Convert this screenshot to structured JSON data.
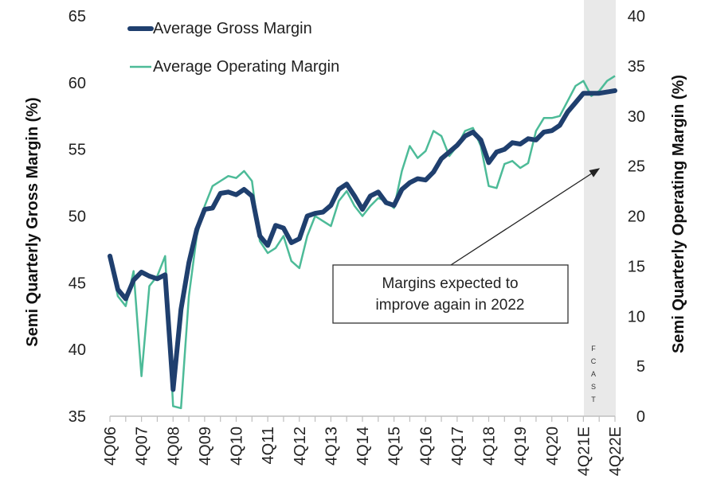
{
  "chart_data": {
    "type": "line",
    "xlabel": "",
    "ylabel": "Semi Quarterly Gross Margin (%)",
    "y2label": "Semi Quarterly Operating Margin (%)",
    "ylim": [
      35,
      65
    ],
    "y2lim": [
      0,
      40
    ],
    "yticks": [
      "35",
      "40",
      "45",
      "50",
      "55",
      "60",
      "65"
    ],
    "y2ticks": [
      "0",
      "5",
      "10",
      "15",
      "20",
      "25",
      "30",
      "35",
      "40"
    ],
    "xticklabels": [
      "4Q06",
      "4Q07",
      "4Q08",
      "4Q09",
      "4Q10",
      "4Q11",
      "4Q12",
      "4Q13",
      "4Q14",
      "4Q15",
      "4Q16",
      "4Q17",
      "4Q18",
      "4Q19",
      "4Q20",
      "4Q21E",
      "4Q22E"
    ],
    "legend": "top-left",
    "series": [
      {
        "name": "Average Gross Margin",
        "axis": "left",
        "color": "#1f3f6e",
        "values": [
          47.0,
          44.5,
          43.8,
          45.2,
          45.8,
          45.5,
          45.3,
          45.6,
          37.0,
          43.0,
          46.5,
          49.0,
          50.5,
          50.6,
          51.7,
          51.8,
          51.6,
          52.0,
          51.5,
          48.5,
          47.8,
          49.3,
          49.1,
          48.0,
          48.3,
          50.0,
          50.2,
          50.3,
          50.8,
          52.0,
          52.4,
          51.5,
          50.5,
          51.5,
          51.8,
          51.0,
          50.8,
          52.0,
          52.5,
          52.8,
          52.7,
          53.3,
          54.3,
          54.8,
          55.3,
          56.0,
          56.3,
          55.7,
          54.0,
          54.8,
          55.0,
          55.5,
          55.4,
          55.8,
          55.7,
          56.3,
          56.4,
          56.8,
          57.8,
          58.5,
          59.2,
          59.2,
          59.2,
          59.3,
          59.4
        ]
      },
      {
        "name": "Average Operating Margin",
        "axis": "right",
        "color": "#4dbb98",
        "values": [
          16.0,
          12.0,
          11.0,
          14.5,
          4.0,
          13.0,
          14.0,
          16.0,
          1.0,
          0.8,
          12.0,
          18.0,
          21.0,
          23.0,
          23.5,
          24.0,
          23.8,
          24.5,
          23.5,
          17.5,
          16.3,
          16.8,
          18.0,
          15.5,
          14.8,
          18.0,
          20.0,
          19.5,
          19.0,
          21.5,
          22.5,
          21.0,
          20.0,
          21.0,
          21.8,
          21.5,
          20.8,
          24.5,
          27.0,
          25.8,
          26.5,
          28.5,
          28.0,
          26.0,
          27.0,
          28.5,
          28.8,
          27.0,
          23.0,
          22.8,
          25.2,
          25.5,
          24.8,
          25.3,
          28.5,
          29.8,
          29.8,
          30.0,
          31.5,
          33.0,
          33.5,
          32.0,
          32.5,
          33.5,
          34.0
        ]
      }
    ],
    "annotation": [
      "Margins expected to",
      "improve again in 2022"
    ],
    "forecast_label": [
      "F",
      "C",
      "A",
      "S",
      "T"
    ]
  }
}
